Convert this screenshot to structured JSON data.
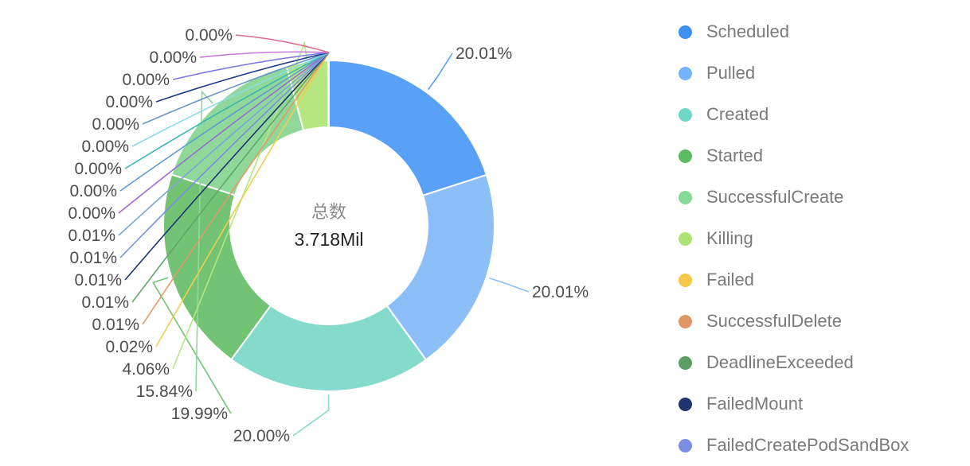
{
  "chart_data": {
    "type": "pie",
    "center_label": "总数",
    "center_value": "3.718Mil",
    "slices": [
      {
        "name": "Scheduled",
        "percent_label": "20.01%",
        "value": 20.01,
        "color": "#58a1f6"
      },
      {
        "name": "Pulled",
        "percent_label": "20.01%",
        "value": 20.01,
        "color": "#8cbff8"
      },
      {
        "name": "Created",
        "percent_label": "20.00%",
        "value": 20.0,
        "color": "#84dbcc"
      },
      {
        "name": "Started",
        "percent_label": "19.99%",
        "value": 19.99,
        "color": "#72c474"
      },
      {
        "name": "SuccessfulCreate",
        "percent_label": "15.84%",
        "value": 15.84,
        "color": "#8fd89a"
      },
      {
        "name": "Killing",
        "percent_label": "4.06%",
        "value": 4.06,
        "color": "#b6e67f"
      },
      {
        "name": "Failed",
        "percent_label": "0.02%",
        "value": 0.02,
        "color": "#f2cd4d"
      },
      {
        "name": "SuccessfulDelete",
        "percent_label": "0.01%",
        "value": 0.01,
        "color": "#e59a68"
      },
      {
        "name": "DeadlineExceeded",
        "percent_label": "0.01%",
        "value": 0.01,
        "color": "#63a66c"
      },
      {
        "name": "FailedMount",
        "percent_label": "0.01%",
        "value": 0.01,
        "color": "#1e3374"
      },
      {
        "name": "FailedCreatePodSandBox",
        "percent_label": "0.01%",
        "value": 0.01,
        "color": "#7b8fe0"
      },
      {
        "name": "",
        "percent_label": "0.01%",
        "value": 0.01,
        "color": "#7aa6d8"
      },
      {
        "name": "",
        "percent_label": "0.00%",
        "value": 0.0,
        "color": "#9b6bd8"
      },
      {
        "name": "",
        "percent_label": "0.00%",
        "value": 0.0,
        "color": "#5f9ad6"
      },
      {
        "name": "",
        "percent_label": "0.00%",
        "value": 0.0,
        "color": "#38b8b0"
      },
      {
        "name": "",
        "percent_label": "0.00%",
        "value": 0.0,
        "color": "#8ddbe0"
      },
      {
        "name": "",
        "percent_label": "0.00%",
        "value": 0.0,
        "color": "#6a93c8"
      },
      {
        "name": "",
        "percent_label": "0.00%",
        "value": 0.0,
        "color": "#1f3b8c"
      },
      {
        "name": "",
        "percent_label": "0.00%",
        "value": 0.0,
        "color": "#7d7ae0"
      },
      {
        "name": "",
        "percent_label": "0.00%",
        "value": 0.0,
        "color": "#c47ad6"
      },
      {
        "name": "",
        "percent_label": "0.00%",
        "value": 0.0,
        "color": "#e06a8c"
      }
    ],
    "legend": [
      {
        "label": "Scheduled",
        "color": "#3d8ff0"
      },
      {
        "label": "Pulled",
        "color": "#75b3f6"
      },
      {
        "label": "Created",
        "color": "#6fd7c6"
      },
      {
        "label": "Started",
        "color": "#5dbb63"
      },
      {
        "label": "SuccessfulCreate",
        "color": "#86d996"
      },
      {
        "label": "Killing",
        "color": "#aee276"
      },
      {
        "label": "Failed",
        "color": "#f4c84a"
      },
      {
        "label": "SuccessfulDelete",
        "color": "#df9566"
      },
      {
        "label": "DeadlineExceeded",
        "color": "#5a9e66"
      },
      {
        "label": "FailedMount",
        "color": "#1f3370"
      },
      {
        "label": "FailedCreatePodSandBox",
        "color": "#7b8ee4"
      }
    ],
    "legend_position": "right"
  }
}
